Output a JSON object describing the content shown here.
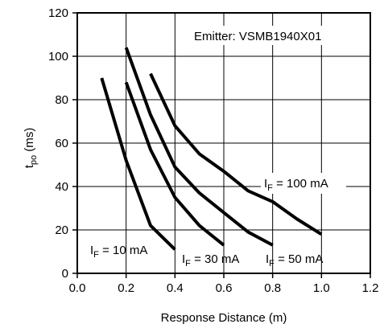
{
  "chart_data": {
    "type": "line",
    "title": "",
    "annotation": "Emitter: VSMB1940X01",
    "xlabel": "Response Distance (m)",
    "ylabel": {
      "main": "t",
      "sub": "po",
      "unit": " (ms)"
    },
    "xlim": [
      0.0,
      1.2
    ],
    "ylim": [
      0,
      120
    ],
    "xticks": [
      "0.0",
      "0.2",
      "0.4",
      "0.6",
      "0.8",
      "1.0",
      "1.2"
    ],
    "yticks": [
      "0",
      "20",
      "40",
      "60",
      "80",
      "100",
      "120"
    ],
    "grid": true,
    "legend": "none",
    "series": [
      {
        "label": {
          "main": "I",
          "sub": "F",
          "rest": " = 10 mA"
        },
        "x": [
          0.1,
          0.2,
          0.3,
          0.4
        ],
        "y": [
          90,
          52,
          22,
          11
        ]
      },
      {
        "label": {
          "main": "I",
          "sub": "F",
          "rest": " = 30 mA"
        },
        "x": [
          0.2,
          0.3,
          0.4,
          0.5,
          0.6
        ],
        "y": [
          88,
          57,
          35,
          22,
          13
        ]
      },
      {
        "label": {
          "main": "I",
          "sub": "F",
          "rest": " = 50 mA"
        },
        "x": [
          0.2,
          0.3,
          0.4,
          0.5,
          0.6,
          0.7,
          0.8
        ],
        "y": [
          104,
          73,
          49,
          37,
          28,
          19,
          13
        ]
      },
      {
        "label": {
          "main": "I",
          "sub": "F",
          "rest": " = 100 mA"
        },
        "x": [
          0.3,
          0.4,
          0.5,
          0.6,
          0.7,
          0.8,
          0.9,
          1.0
        ],
        "y": [
          92,
          68,
          55,
          47,
          38,
          33,
          25,
          18
        ]
      }
    ]
  }
}
